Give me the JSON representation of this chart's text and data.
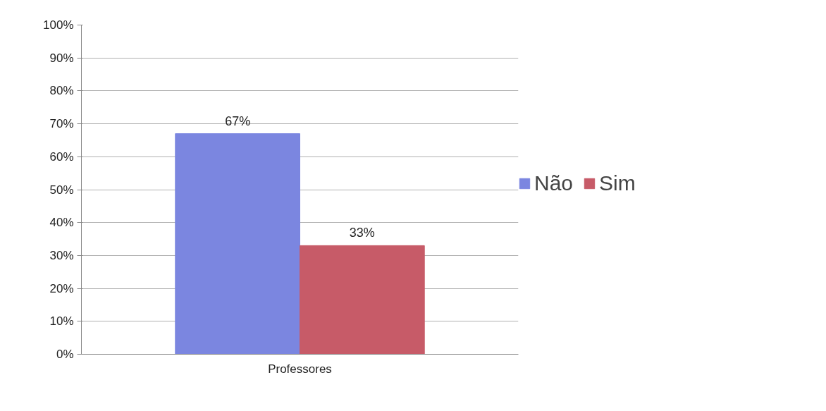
{
  "chart_data": {
    "type": "bar",
    "categories": [
      "Professores"
    ],
    "series": [
      {
        "name": "Não",
        "color": "#7b86e0",
        "values": [
          67
        ],
        "value_labels": [
          "67%"
        ]
      },
      {
        "name": "Sim",
        "color": "#c75b68",
        "values": [
          33
        ],
        "value_labels": [
          "33%"
        ]
      }
    ],
    "ylim": [
      0,
      100
    ],
    "yticks": [
      {
        "value": 0,
        "label": "0%"
      },
      {
        "value": 10,
        "label": "10%"
      },
      {
        "value": 20,
        "label": "20%"
      },
      {
        "value": 30,
        "label": "30%"
      },
      {
        "value": 40,
        "label": "40%"
      },
      {
        "value": 50,
        "label": "50%"
      },
      {
        "value": 60,
        "label": "60%"
      },
      {
        "value": 70,
        "label": "70%"
      },
      {
        "value": 80,
        "label": "80%"
      },
      {
        "value": 90,
        "label": "90%"
      },
      {
        "value": 100,
        "label": "100%"
      }
    ],
    "grid": "y",
    "legend": "right"
  }
}
